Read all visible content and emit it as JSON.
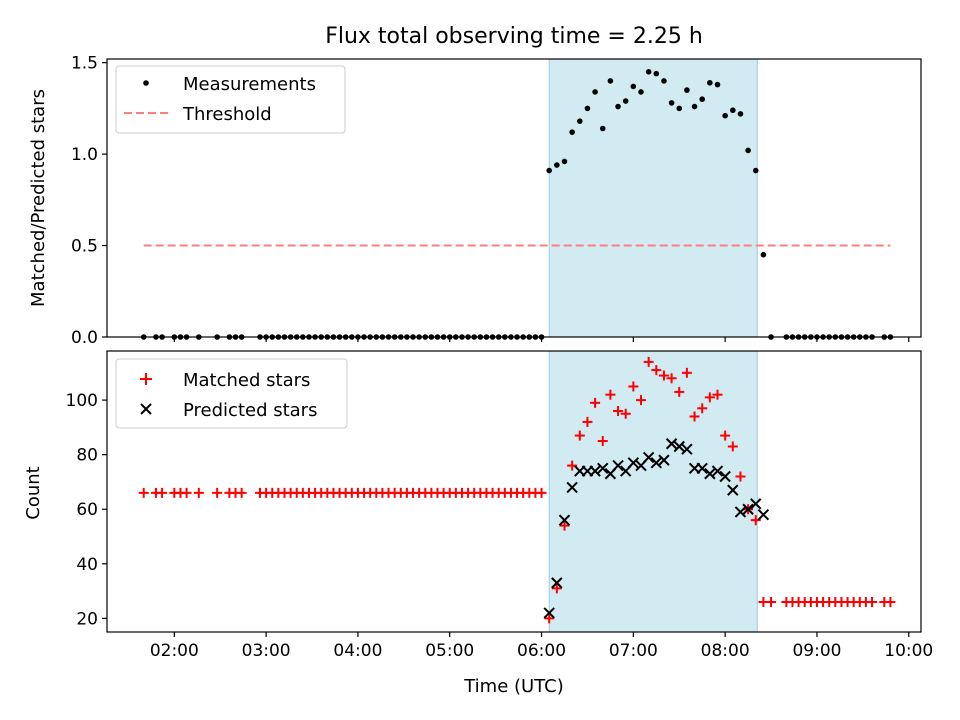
{
  "figure": {
    "title": "Flux total observing time = 2.25 h"
  },
  "chart_data": [
    {
      "type": "scatter",
      "ylabel": "Matched/Predicted stars",
      "xlabel": "",
      "xlim": [
        "01:16",
        "10:08"
      ],
      "ylim": [
        0,
        1.52
      ],
      "yticks": [
        0.0,
        0.5,
        1.0,
        1.5
      ],
      "ytick_labels": [
        "0.0",
        "0.5",
        "1.0",
        "1.5"
      ],
      "legend_position": "top-left",
      "shaded_span": [
        "06:05",
        "08:21"
      ],
      "series": [
        {
          "name": "Measurements",
          "marker": "dot",
          "color": "#000000",
          "points": [
            [
              "01:40",
              0
            ],
            [
              "01:48",
              0
            ],
            [
              "01:52",
              0
            ],
            [
              "02:00",
              0
            ],
            [
              "02:04",
              0
            ],
            [
              "02:08",
              0
            ],
            [
              "02:16",
              0
            ],
            [
              "02:28",
              0
            ],
            [
              "02:36",
              0
            ],
            [
              "02:40",
              0
            ],
            [
              "02:44",
              0
            ],
            [
              "02:56",
              0
            ],
            [
              "03:00",
              0
            ],
            [
              "03:04",
              0
            ],
            [
              "03:08",
              0
            ],
            [
              "03:12",
              0
            ],
            [
              "03:16",
              0
            ],
            [
              "03:20",
              0
            ],
            [
              "03:24",
              0
            ],
            [
              "03:28",
              0
            ],
            [
              "03:32",
              0
            ],
            [
              "03:36",
              0
            ],
            [
              "03:40",
              0
            ],
            [
              "03:44",
              0
            ],
            [
              "03:48",
              0
            ],
            [
              "03:52",
              0
            ],
            [
              "03:56",
              0
            ],
            [
              "04:00",
              0
            ],
            [
              "04:04",
              0
            ],
            [
              "04:08",
              0
            ],
            [
              "04:12",
              0
            ],
            [
              "04:16",
              0
            ],
            [
              "04:20",
              0
            ],
            [
              "04:24",
              0
            ],
            [
              "04:28",
              0
            ],
            [
              "04:32",
              0
            ],
            [
              "04:36",
              0
            ],
            [
              "04:40",
              0
            ],
            [
              "04:44",
              0
            ],
            [
              "04:48",
              0
            ],
            [
              "04:52",
              0
            ],
            [
              "04:56",
              0
            ],
            [
              "05:00",
              0
            ],
            [
              "05:04",
              0
            ],
            [
              "05:08",
              0
            ],
            [
              "05:12",
              0
            ],
            [
              "05:16",
              0
            ],
            [
              "05:20",
              0
            ],
            [
              "05:24",
              0
            ],
            [
              "05:28",
              0
            ],
            [
              "05:32",
              0
            ],
            [
              "05:36",
              0
            ],
            [
              "05:40",
              0
            ],
            [
              "05:44",
              0
            ],
            [
              "05:48",
              0
            ],
            [
              "05:52",
              0
            ],
            [
              "05:56",
              0
            ],
            [
              "06:00",
              0
            ],
            [
              "06:05",
              0.91
            ],
            [
              "06:10",
              0.94
            ],
            [
              "06:15",
              0.96
            ],
            [
              "06:20",
              1.12
            ],
            [
              "06:25",
              1.18
            ],
            [
              "06:30",
              1.25
            ],
            [
              "06:35",
              1.34
            ],
            [
              "06:40",
              1.14
            ],
            [
              "06:45",
              1.4
            ],
            [
              "06:50",
              1.26
            ],
            [
              "06:55",
              1.29
            ],
            [
              "07:00",
              1.37
            ],
            [
              "07:05",
              1.34
            ],
            [
              "07:10",
              1.45
            ],
            [
              "07:15",
              1.44
            ],
            [
              "07:20",
              1.4
            ],
            [
              "07:25",
              1.28
            ],
            [
              "07:30",
              1.25
            ],
            [
              "07:35",
              1.35
            ],
            [
              "07:40",
              1.26
            ],
            [
              "07:45",
              1.3
            ],
            [
              "07:50",
              1.39
            ],
            [
              "07:55",
              1.38
            ],
            [
              "08:00",
              1.21
            ],
            [
              "08:05",
              1.24
            ],
            [
              "08:10",
              1.22
            ],
            [
              "08:15",
              1.02
            ],
            [
              "08:20",
              0.91
            ],
            [
              "08:25",
              0.45
            ],
            [
              "08:30",
              0
            ],
            [
              "08:40",
              0
            ],
            [
              "08:44",
              0
            ],
            [
              "08:48",
              0
            ],
            [
              "08:52",
              0
            ],
            [
              "08:56",
              0
            ],
            [
              "09:00",
              0
            ],
            [
              "09:04",
              0
            ],
            [
              "09:08",
              0
            ],
            [
              "09:12",
              0
            ],
            [
              "09:16",
              0
            ],
            [
              "09:20",
              0
            ],
            [
              "09:24",
              0
            ],
            [
              "09:28",
              0
            ],
            [
              "09:32",
              0
            ],
            [
              "09:36",
              0
            ],
            [
              "09:44",
              0
            ],
            [
              "09:48",
              0
            ]
          ]
        },
        {
          "name": "Threshold",
          "style": "dashed",
          "color": "#ff7f7f",
          "points": [
            [
              "01:40",
              0.5
            ],
            [
              "09:48",
              0.5
            ]
          ]
        }
      ]
    },
    {
      "type": "scatter",
      "ylabel": "Count",
      "xlabel": "Time (UTC)",
      "xlim": [
        "01:16",
        "10:08"
      ],
      "ylim": [
        15,
        118
      ],
      "yticks": [
        20,
        40,
        60,
        80,
        100
      ],
      "ytick_labels": [
        "20",
        "40",
        "60",
        "80",
        "100"
      ],
      "xticks": [
        "02:00",
        "03:00",
        "04:00",
        "05:00",
        "06:00",
        "07:00",
        "08:00",
        "09:00",
        "10:00"
      ],
      "xtick_labels": [
        "02:00",
        "03:00",
        "04:00",
        "05:00",
        "06:00",
        "07:00",
        "08:00",
        "09:00",
        "10:00"
      ],
      "legend_position": "top-left",
      "shaded_span": [
        "06:05",
        "08:21"
      ],
      "series": [
        {
          "name": "Matched stars",
          "marker": "plus",
          "color": "#ff0000",
          "points": [
            [
              "01:40",
              66
            ],
            [
              "01:48",
              66
            ],
            [
              "01:52",
              66
            ],
            [
              "02:00",
              66
            ],
            [
              "02:04",
              66
            ],
            [
              "02:08",
              66
            ],
            [
              "02:16",
              66
            ],
            [
              "02:28",
              66
            ],
            [
              "02:36",
              66
            ],
            [
              "02:40",
              66
            ],
            [
              "02:44",
              66
            ],
            [
              "02:56",
              66
            ],
            [
              "03:00",
              66
            ],
            [
              "03:04",
              66
            ],
            [
              "03:08",
              66
            ],
            [
              "03:12",
              66
            ],
            [
              "03:16",
              66
            ],
            [
              "03:20",
              66
            ],
            [
              "03:24",
              66
            ],
            [
              "03:28",
              66
            ],
            [
              "03:32",
              66
            ],
            [
              "03:36",
              66
            ],
            [
              "03:40",
              66
            ],
            [
              "03:44",
              66
            ],
            [
              "03:48",
              66
            ],
            [
              "03:52",
              66
            ],
            [
              "03:56",
              66
            ],
            [
              "04:00",
              66
            ],
            [
              "04:04",
              66
            ],
            [
              "04:08",
              66
            ],
            [
              "04:12",
              66
            ],
            [
              "04:16",
              66
            ],
            [
              "04:20",
              66
            ],
            [
              "04:24",
              66
            ],
            [
              "04:28",
              66
            ],
            [
              "04:32",
              66
            ],
            [
              "04:36",
              66
            ],
            [
              "04:40",
              66
            ],
            [
              "04:44",
              66
            ],
            [
              "04:48",
              66
            ],
            [
              "04:52",
              66
            ],
            [
              "04:56",
              66
            ],
            [
              "05:00",
              66
            ],
            [
              "05:04",
              66
            ],
            [
              "05:08",
              66
            ],
            [
              "05:12",
              66
            ],
            [
              "05:16",
              66
            ],
            [
              "05:20",
              66
            ],
            [
              "05:24",
              66
            ],
            [
              "05:28",
              66
            ],
            [
              "05:32",
              66
            ],
            [
              "05:36",
              66
            ],
            [
              "05:40",
              66
            ],
            [
              "05:44",
              66
            ],
            [
              "05:48",
              66
            ],
            [
              "05:52",
              66
            ],
            [
              "05:56",
              66
            ],
            [
              "06:00",
              66
            ],
            [
              "06:05",
              20
            ],
            [
              "06:10",
              31
            ],
            [
              "06:15",
              54
            ],
            [
              "06:20",
              76
            ],
            [
              "06:25",
              87
            ],
            [
              "06:30",
              92
            ],
            [
              "06:35",
              99
            ],
            [
              "06:40",
              85
            ],
            [
              "06:45",
              102
            ],
            [
              "06:50",
              96
            ],
            [
              "06:55",
              95
            ],
            [
              "07:00",
              105
            ],
            [
              "07:05",
              100
            ],
            [
              "07:10",
              114
            ],
            [
              "07:15",
              111
            ],
            [
              "07:20",
              109
            ],
            [
              "07:25",
              108
            ],
            [
              "07:30",
              103
            ],
            [
              "07:35",
              110
            ],
            [
              "07:40",
              94
            ],
            [
              "07:45",
              97
            ],
            [
              "07:50",
              101
            ],
            [
              "07:55",
              102
            ],
            [
              "08:00",
              87
            ],
            [
              "08:05",
              83
            ],
            [
              "08:10",
              72
            ],
            [
              "08:15",
              60
            ],
            [
              "08:20",
              56
            ],
            [
              "08:25",
              26
            ],
            [
              "08:30",
              26
            ],
            [
              "08:40",
              26
            ],
            [
              "08:44",
              26
            ],
            [
              "08:48",
              26
            ],
            [
              "08:52",
              26
            ],
            [
              "08:56",
              26
            ],
            [
              "09:00",
              26
            ],
            [
              "09:04",
              26
            ],
            [
              "09:08",
              26
            ],
            [
              "09:12",
              26
            ],
            [
              "09:16",
              26
            ],
            [
              "09:20",
              26
            ],
            [
              "09:24",
              26
            ],
            [
              "09:28",
              26
            ],
            [
              "09:32",
              26
            ],
            [
              "09:36",
              26
            ],
            [
              "09:44",
              26
            ],
            [
              "09:48",
              26
            ]
          ]
        },
        {
          "name": "Predicted stars",
          "marker": "x",
          "color": "#000000",
          "points": [
            [
              "06:05",
              22
            ],
            [
              "06:10",
              33
            ],
            [
              "06:15",
              56
            ],
            [
              "06:20",
              68
            ],
            [
              "06:25",
              74
            ],
            [
              "06:30",
              74
            ],
            [
              "06:35",
              74
            ],
            [
              "06:40",
              75
            ],
            [
              "06:45",
              73
            ],
            [
              "06:50",
              76
            ],
            [
              "06:55",
              74
            ],
            [
              "07:00",
              77
            ],
            [
              "07:05",
              76
            ],
            [
              "07:10",
              79
            ],
            [
              "07:15",
              77
            ],
            [
              "07:20",
              78
            ],
            [
              "07:25",
              84
            ],
            [
              "07:30",
              83
            ],
            [
              "07:35",
              82
            ],
            [
              "07:40",
              75
            ],
            [
              "07:45",
              75
            ],
            [
              "07:50",
              73
            ],
            [
              "07:55",
              74
            ],
            [
              "08:00",
              72
            ],
            [
              "08:05",
              67
            ],
            [
              "08:10",
              59
            ],
            [
              "08:15",
              60
            ],
            [
              "08:20",
              62
            ],
            [
              "08:25",
              58
            ]
          ]
        }
      ]
    }
  ],
  "colors": {
    "shade": "#add8e6",
    "matched": "#ff0000",
    "predicted": "#000000",
    "threshold": "#ff7f7f"
  }
}
